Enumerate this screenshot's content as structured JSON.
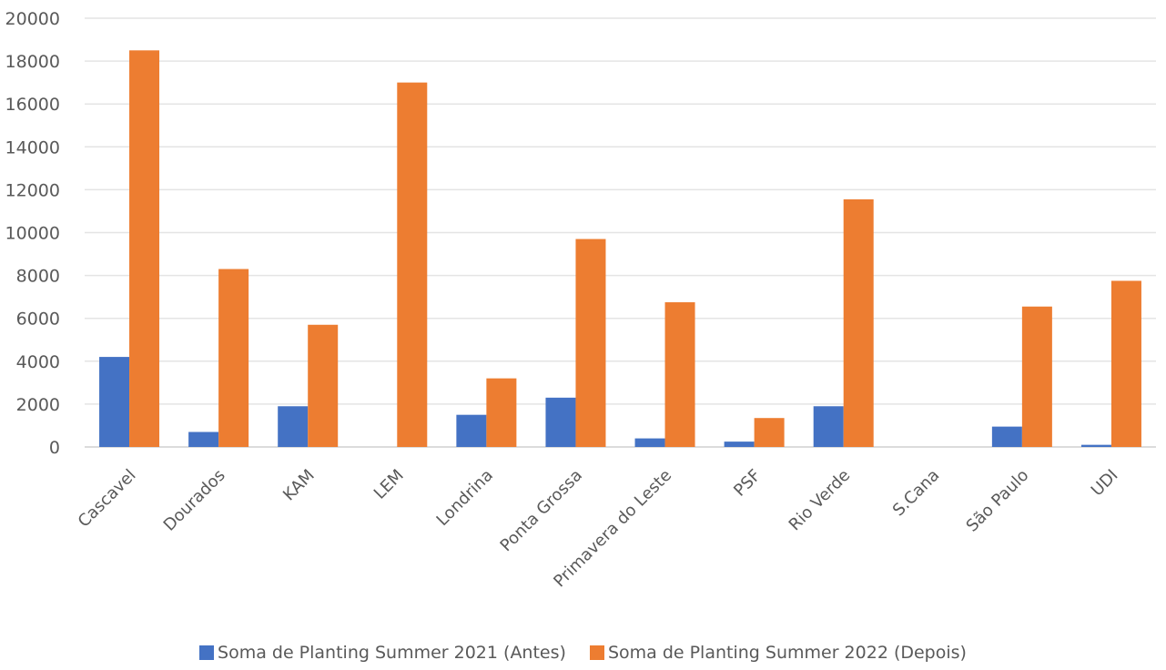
{
  "chart_data": {
    "type": "bar",
    "categories": [
      "Cascavel",
      "Dourados",
      "KAM",
      "LEM",
      "Londrina",
      "Ponta Grossa",
      "Primavera do Leste",
      "PSF",
      "Rio Verde",
      "S.Cana",
      "São Paulo",
      "UDI"
    ],
    "series": [
      {
        "name": "Soma de Planting Summer 2021 (Antes)",
        "color": "#4472C4",
        "values": [
          4200,
          700,
          1900,
          0,
          1500,
          2300,
          400,
          250,
          1900,
          0,
          950,
          100
        ]
      },
      {
        "name": "Soma de Planting Summer 2022 (Depois)",
        "color": "#ED7D31",
        "values": [
          18500,
          8300,
          5700,
          17000,
          3200,
          9700,
          6750,
          1350,
          11550,
          0,
          6550,
          7750
        ]
      }
    ],
    "yticks": [
      "0",
      "2000",
      "4000",
      "6000",
      "8000",
      "10000",
      "12000",
      "14000",
      "16000",
      "18000",
      "20000"
    ],
    "ylim": [
      0,
      20000
    ],
    "grid": true,
    "legend_position": "bottom"
  }
}
